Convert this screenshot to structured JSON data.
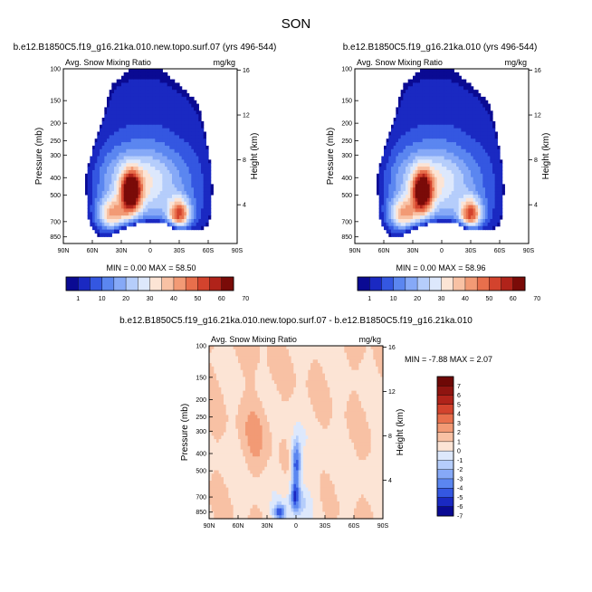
{
  "figure": {
    "title": "SON"
  },
  "colors": {
    "cool": [
      "#0b0f8f",
      "#1216c9",
      "#2e3fe0",
      "#4a66ee",
      "#6d8df5",
      "#94b2fb",
      "#c3d7fd",
      "#e2ecfd"
    ],
    "warm": [
      "#fbe5d9",
      "#f9cdb8",
      "#f6ae90",
      "#f28866",
      "#e96142",
      "#d43b26",
      "#b11c13",
      "#7f0b08"
    ],
    "neutral_low": "#e2ecfd",
    "neutral_high": "#fbe5d9"
  },
  "chart_data": [
    {
      "id": "panel-1",
      "type": "heatmap",
      "title": "b.e12.B1850C5.f19_g16.21ka.010.new.topo.surf.07 (yrs 496-544)",
      "left_label": "Avg. Snow Mixing Ratio",
      "units": "mg/kg",
      "xlabel": "",
      "ylabel": "Pressure (mb)",
      "ylabel_right": "Height (km)",
      "x_ticks": [
        "90N",
        "60N",
        "30N",
        "0",
        "30S",
        "60S",
        "90S"
      ],
      "x_range": [
        90,
        -90
      ],
      "y_ticks": [
        100,
        150,
        200,
        250,
        300,
        400,
        500,
        700,
        850
      ],
      "y_scale": "log",
      "y_range": [
        100,
        925
      ],
      "y_right_ticks": [
        4,
        8,
        12,
        16
      ],
      "stats": "MIN =   0.00   MAX =  58.50",
      "min": 0.0,
      "max": 58.5,
      "colorbar_levels": [
        1,
        10,
        20,
        30,
        40,
        50,
        60,
        70
      ],
      "features": [
        {
          "lat": 20,
          "p": 480,
          "value": 55
        },
        {
          "lat": -30,
          "p": 640,
          "value": 45
        },
        {
          "lat": 40,
          "p": 640,
          "value": 32
        },
        {
          "lat": 0,
          "p": 800,
          "value": 0
        }
      ]
    },
    {
      "id": "panel-2",
      "type": "heatmap",
      "title": "b.e12.B1850C5.f19_g16.21ka.010 (yrs 496-544)",
      "left_label": "Avg. Snow Mixing Ratio",
      "units": "mg/kg",
      "xlabel": "",
      "ylabel": "Pressure (mb)",
      "ylabel_right": "Height (km)",
      "x_ticks": [
        "90N",
        "60N",
        "30N",
        "0",
        "30S",
        "60S",
        "90S"
      ],
      "x_range": [
        90,
        -90
      ],
      "y_ticks": [
        100,
        150,
        200,
        250,
        300,
        400,
        500,
        700,
        850
      ],
      "y_scale": "log",
      "y_range": [
        100,
        925
      ],
      "y_right_ticks": [
        4,
        8,
        12,
        16
      ],
      "stats": "MIN =   0.00   MAX =  58.96",
      "min": 0.0,
      "max": 58.96,
      "colorbar_levels": [
        1,
        10,
        20,
        30,
        40,
        50,
        60,
        70
      ],
      "features": [
        {
          "lat": 20,
          "p": 480,
          "value": 55
        },
        {
          "lat": -30,
          "p": 640,
          "value": 45
        },
        {
          "lat": 40,
          "p": 640,
          "value": 32
        },
        {
          "lat": 0,
          "p": 800,
          "value": 0
        }
      ]
    },
    {
      "id": "panel-diff",
      "type": "heatmap",
      "title": "b.e12.B1850C5.f19_g16.21ka.010.new.topo.surf.07 - b.e12.B1850C5.f19_g16.21ka.010",
      "left_label": "Avg. Snow Mixing Ratio",
      "units": "mg/kg",
      "xlabel": "",
      "ylabel": "Pressure (mb)",
      "ylabel_right": "Height (km)",
      "x_ticks": [
        "90N",
        "60N",
        "30N",
        "0",
        "30S",
        "60S",
        "90S"
      ],
      "x_range": [
        90,
        -90
      ],
      "y_ticks": [
        100,
        150,
        200,
        250,
        300,
        400,
        500,
        700,
        850
      ],
      "y_scale": "log",
      "y_range": [
        100,
        925
      ],
      "y_right_ticks": [
        4,
        8,
        12,
        16
      ],
      "stats": "MIN =  -7.88   MAX =   2.07",
      "min": -7.88,
      "max": 2.07,
      "colorbar_levels": [
        -7,
        -6,
        -5,
        -4,
        -3,
        -2,
        -1,
        0,
        1,
        2,
        3,
        4,
        5,
        6,
        7
      ],
      "features": [
        {
          "lat": 0,
          "p": 450,
          "value": -6
        },
        {
          "lat": 15,
          "p": 850,
          "value": -5
        },
        {
          "lat": 0,
          "p": 700,
          "value": -3
        }
      ]
    }
  ]
}
